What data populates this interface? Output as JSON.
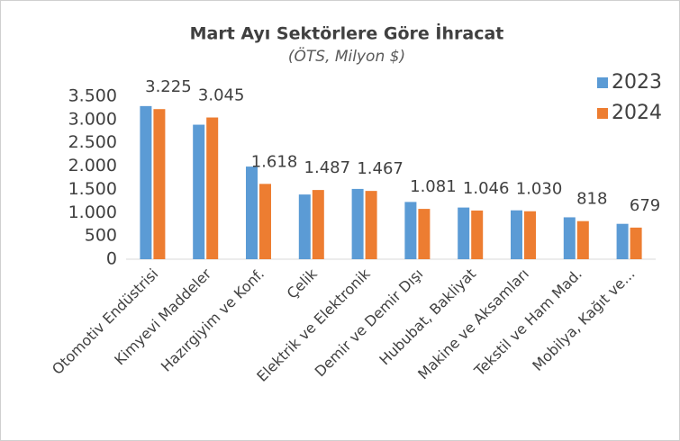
{
  "chart_data": {
    "type": "bar",
    "title": "Mart Ayı Sektörlere Göre İhracat",
    "subtitle": "(ÖTS, Milyon $)",
    "categories": [
      "Otomotiv Endüstrisi",
      "Kimyevi Maddeler",
      "Hazırgiyim ve Konf.",
      "Çelik",
      "Elektrik ve Elektronik",
      "Demir ve Demir Dışı",
      "Hububat, Bakliyat",
      "Makine ve Aksamları",
      "Tekstil ve Ham Mad.",
      "Mobilya, Kağıt ve..."
    ],
    "series": [
      {
        "name": "2023",
        "color": "#5b9bd5",
        "values": [
          3290,
          2890,
          1990,
          1390,
          1510,
          1230,
          1110,
          1050,
          900,
          760
        ]
      },
      {
        "name": "2024",
        "color": "#ed7d31",
        "values": [
          3225,
          3045,
          1618,
          1487,
          1467,
          1081,
          1046,
          1030,
          818,
          679
        ],
        "value_labels": [
          "3.225",
          "3.045",
          "1.618",
          "1.487",
          "1.467",
          "1.081",
          "1.046",
          "1.030",
          "818",
          "679"
        ]
      }
    ],
    "ylim": [
      0,
      3500
    ],
    "yticks": [
      0,
      {
        "value": 500,
        "label": "500"
      },
      {
        "value": 1000,
        "label": "1.000"
      },
      {
        "value": 1500,
        "label": "1.500"
      },
      {
        "value": 2000,
        "label": "2.000"
      },
      {
        "value": 2500,
        "label": "2.500"
      },
      {
        "value": 3000,
        "label": "3.000"
      },
      {
        "value": 3500,
        "label": "3.500"
      }
    ],
    "grid": false,
    "legend": "top-right"
  }
}
